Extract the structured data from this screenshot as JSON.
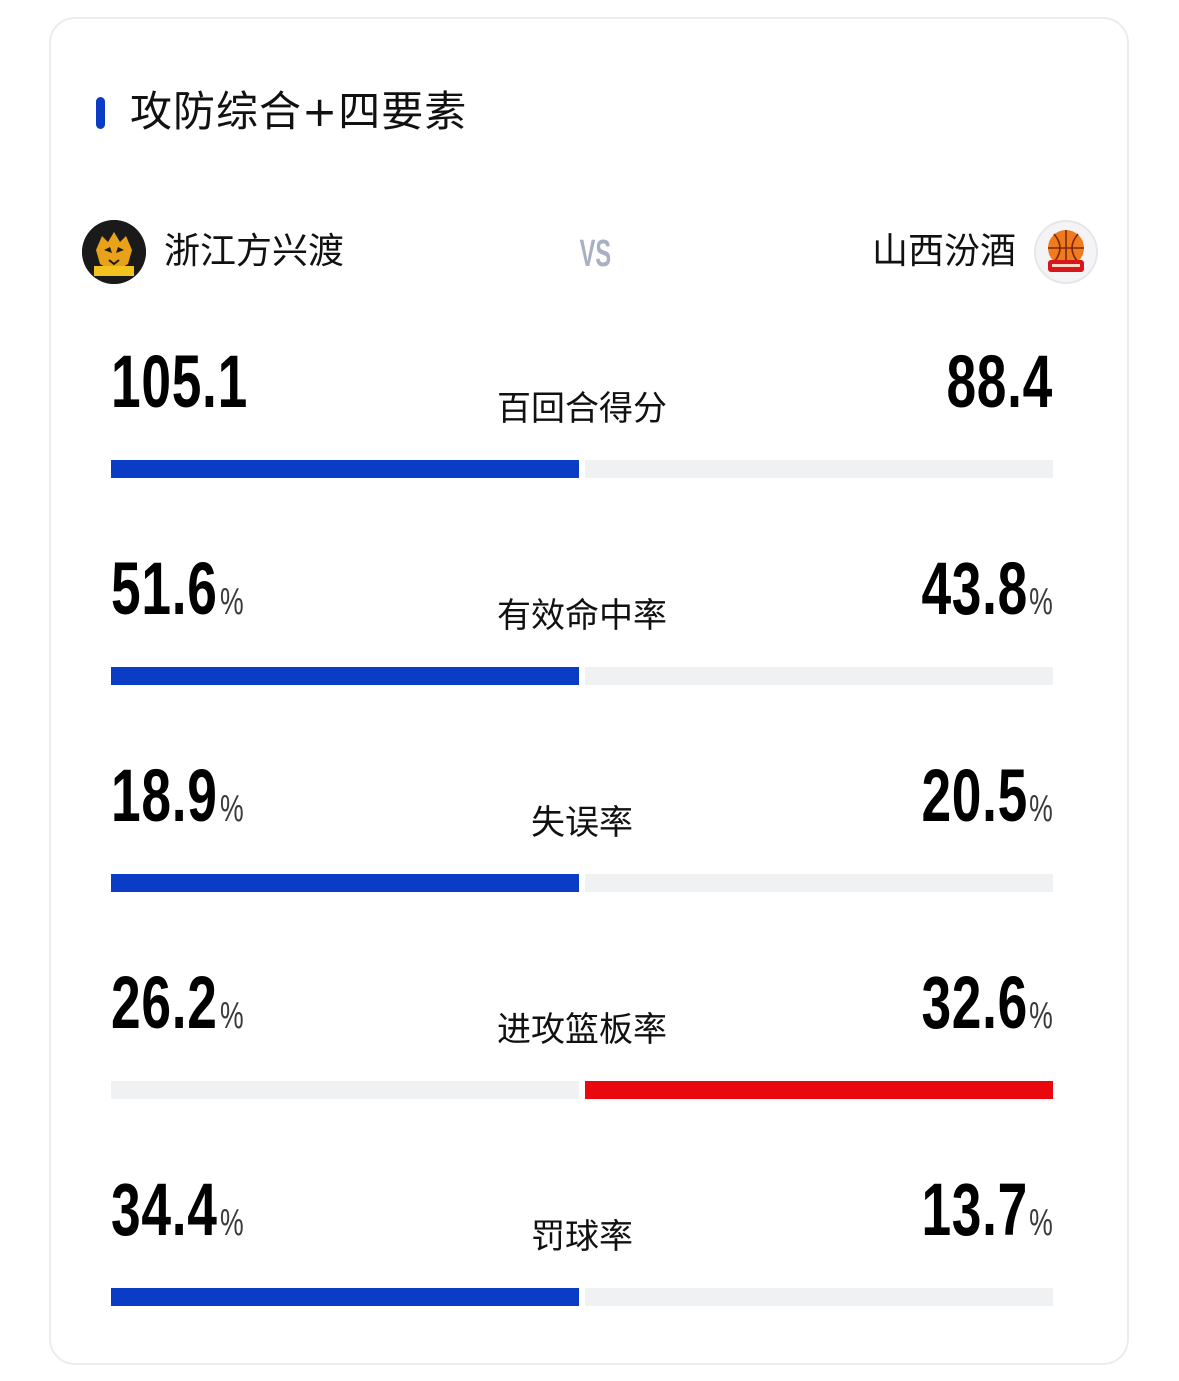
{
  "section": {
    "title": "攻防综合+四要素",
    "accent_color": "#0a3cc6"
  },
  "teams": {
    "home": {
      "name": "浙江方兴渡",
      "logo_icon": "zhejiang-tiger-logo"
    },
    "vs_label": "VS",
    "away": {
      "name": "山西汾酒",
      "logo_icon": "shanxi-basketball-logo"
    }
  },
  "colors": {
    "home_win": "#0a3cc6",
    "away_win": "#e8080e",
    "neutral": "#f0f1f3"
  },
  "stats": [
    {
      "label": "百回合得分",
      "home": "105.1",
      "away": "88.4",
      "unit": "",
      "leader": "home"
    },
    {
      "label": "有效命中率",
      "home": "51.6",
      "away": "43.8",
      "unit": "%",
      "leader": "home"
    },
    {
      "label": "失误率",
      "home": "18.9",
      "away": "20.5",
      "unit": "%",
      "leader": "home"
    },
    {
      "label": "进攻篮板率",
      "home": "26.2",
      "away": "32.6",
      "unit": "%",
      "leader": "away"
    },
    {
      "label": "罚球率",
      "home": "34.4",
      "away": "13.7",
      "unit": "%",
      "leader": "home"
    }
  ]
}
